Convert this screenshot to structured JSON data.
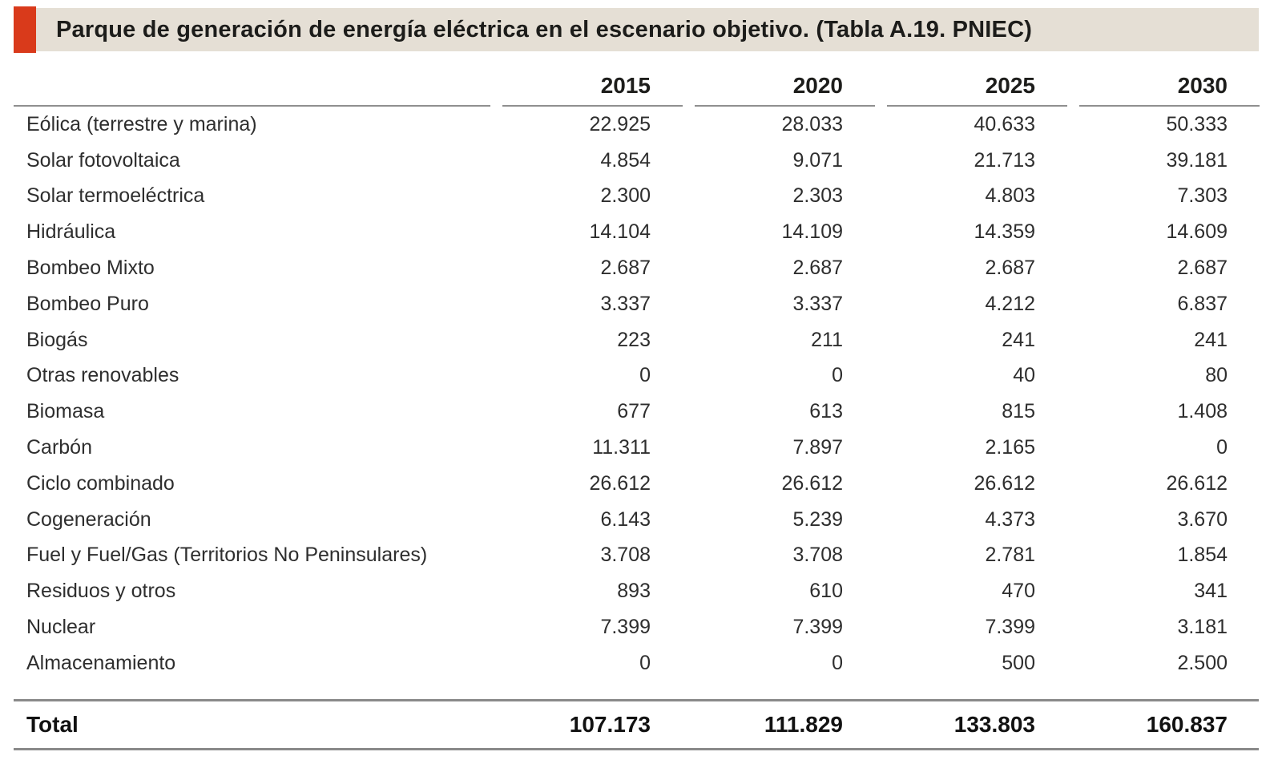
{
  "title": "Parque de generación de energía eléctrica en el escenario objetivo. (Tabla A.19. PNIEC)",
  "colors": {
    "accent_bar": "#d93a1b",
    "title_band_bg": "#e5dfd5",
    "header_rule": "#8f8f8f",
    "total_rule": "#8a8a8a",
    "body_text": "#2e2e2e",
    "bold_text": "#1c1c1a"
  },
  "chart_data": {
    "type": "table",
    "title": "Parque de generación de energía eléctrica en el escenario objetivo. (Tabla A.19. PNIEC)",
    "columns": [
      "2015",
      "2020",
      "2025",
      "2030"
    ],
    "rows": [
      {
        "label": "Eólica (terrestre y marina)",
        "values": [
          "22.925",
          "28.033",
          "40.633",
          "50.333"
        ]
      },
      {
        "label": "Solar fotovoltaica",
        "values": [
          "4.854",
          "9.071",
          "21.713",
          "39.181"
        ]
      },
      {
        "label": "Solar termoeléctrica",
        "values": [
          "2.300",
          "2.303",
          "4.803",
          "7.303"
        ]
      },
      {
        "label": "Hidráulica",
        "values": [
          "14.104",
          "14.109",
          "14.359",
          "14.609"
        ]
      },
      {
        "label": "Bombeo Mixto",
        "values": [
          "2.687",
          "2.687",
          "2.687",
          "2.687"
        ]
      },
      {
        "label": "Bombeo Puro",
        "values": [
          "3.337",
          "3.337",
          "4.212",
          "6.837"
        ]
      },
      {
        "label": "Biogás",
        "values": [
          "223",
          "211",
          "241",
          "241"
        ]
      },
      {
        "label": "Otras renovables",
        "values": [
          "0",
          "0",
          "40",
          "80"
        ]
      },
      {
        "label": "Biomasa",
        "values": [
          "677",
          "613",
          "815",
          "1.408"
        ]
      },
      {
        "label": "Carbón",
        "values": [
          "11.311",
          "7.897",
          "2.165",
          "0"
        ]
      },
      {
        "label": "Ciclo combinado",
        "values": [
          "26.612",
          "26.612",
          "26.612",
          "26.612"
        ]
      },
      {
        "label": "Cogeneración",
        "values": [
          "6.143",
          "5.239",
          "4.373",
          "3.670"
        ]
      },
      {
        "label": "Fuel y Fuel/Gas (Territorios No Peninsulares)",
        "values": [
          "3.708",
          "3.708",
          "2.781",
          "1.854"
        ]
      },
      {
        "label": "Residuos y otros",
        "values": [
          "893",
          "610",
          "470",
          "341"
        ]
      },
      {
        "label": "Nuclear",
        "values": [
          "7.399",
          "7.399",
          "7.399",
          "3.181"
        ]
      },
      {
        "label": "Almacenamiento",
        "values": [
          "0",
          "0",
          "500",
          "2.500"
        ]
      }
    ],
    "total_row": {
      "label": "Total",
      "values": [
        "107.173",
        "111.829",
        "133.803",
        "160.837"
      ]
    }
  }
}
